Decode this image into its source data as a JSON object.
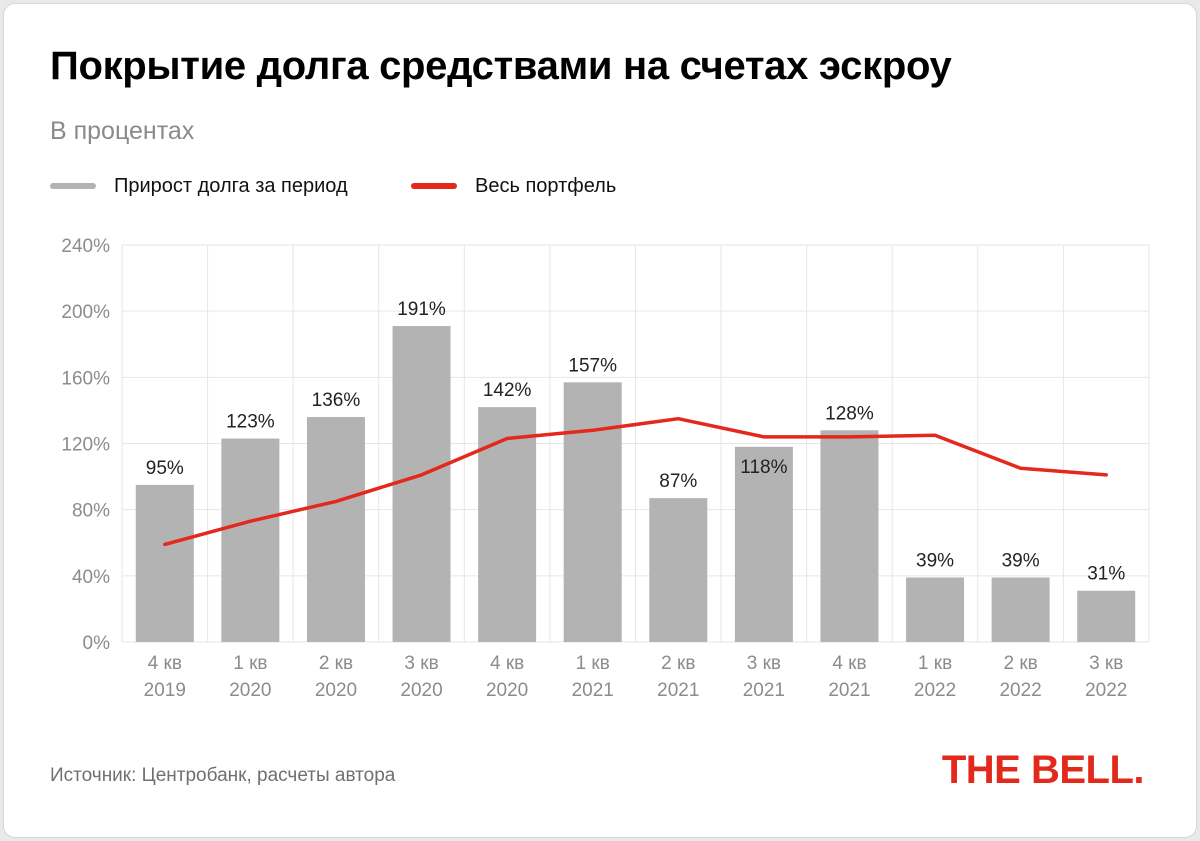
{
  "header": {
    "title": "Покрытие долга средствами на счетах эскроу",
    "subtitle": "В процентах"
  },
  "legend": {
    "bars_label": "Прирост долга за период",
    "line_label": "Весь портфель"
  },
  "footer": {
    "source": "Источник: Центробанк, расчеты автора",
    "logo_text": "THE BELL."
  },
  "colors": {
    "bar": "#b3b3b3",
    "line": "#e2291c",
    "grid": "#e6e6e6",
    "axis_label": "#8c8c8c",
    "data_label": "#222222",
    "logo": "#e2291c"
  },
  "chart_data": {
    "type": "bar",
    "categories": [
      [
        "4 кв",
        "2019"
      ],
      [
        "1 кв",
        "2020"
      ],
      [
        "2 кв",
        "2020"
      ],
      [
        "3 кв",
        "2020"
      ],
      [
        "4 кв",
        "2020"
      ],
      [
        "1 кв",
        "2021"
      ],
      [
        "2 кв",
        "2021"
      ],
      [
        "3 кв",
        "2021"
      ],
      [
        "4 кв",
        "2021"
      ],
      [
        "1 кв",
        "2022"
      ],
      [
        "2 кв",
        "2022"
      ],
      [
        "3 кв",
        "2022"
      ]
    ],
    "series": [
      {
        "name": "Прирост долга за период",
        "type": "bar",
        "values": [
          95,
          123,
          136,
          191,
          142,
          157,
          87,
          118,
          128,
          39,
          39,
          31
        ],
        "labels": [
          "95%",
          "123%",
          "136%",
          "191%",
          "142%",
          "157%",
          "87%",
          "118%",
          "128%",
          "39%",
          "39%",
          "31%"
        ]
      },
      {
        "name": "Весь портфель",
        "type": "line",
        "values": [
          59,
          73,
          85,
          101,
          123,
          128,
          135,
          124,
          124,
          125,
          105,
          101
        ]
      }
    ],
    "ylim": [
      0,
      240
    ],
    "yticks": [
      0,
      40,
      80,
      120,
      160,
      200,
      240
    ],
    "ytick_labels": [
      "0%",
      "40%",
      "80%",
      "120%",
      "160%",
      "200%",
      "240%"
    ],
    "grid": true,
    "legend_position": "top-left"
  }
}
